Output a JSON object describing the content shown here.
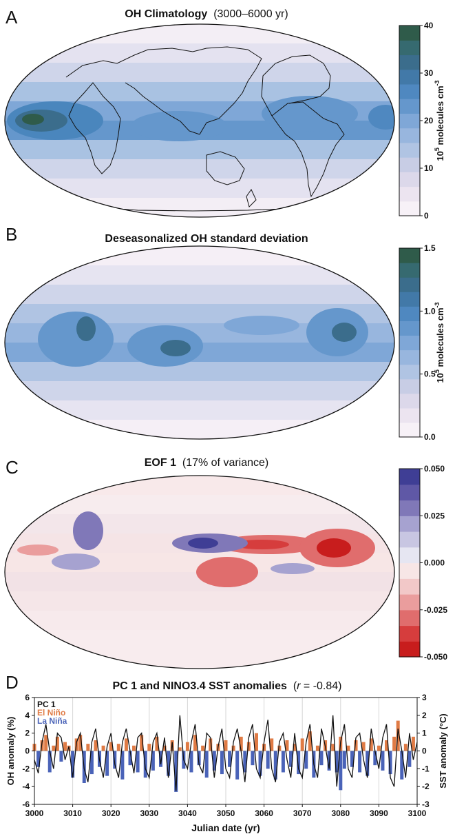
{
  "panels": {
    "a": {
      "letter": "A",
      "title_bold": "OH Climatology",
      "title_rest": "(3000–6000 yr)"
    },
    "b": {
      "letter": "B",
      "title_bold": "Deseasonalized OH standard deviation",
      "title_rest": ""
    },
    "c": {
      "letter": "C",
      "title_bold": "EOF 1",
      "title_rest": "(17% of variance)"
    },
    "d": {
      "letter": "D",
      "title_bold": "PC 1 and NINO3.4 SST anomalies",
      "title_paren_open": "(",
      "title_r": "r",
      "title_rest": " = -0.84)"
    }
  },
  "colorbars": {
    "a": {
      "ticks": [
        "0",
        "10",
        "20",
        "30",
        "40"
      ],
      "unit_base": "10",
      "unit_exp": "5",
      "unit_mid": " molecules cm",
      "unit_exp2": "-3",
      "colors": [
        "#f7f1f7",
        "#ece4f0",
        "#dcd8ea",
        "#c8cde5",
        "#b0c4e3",
        "#98b6de",
        "#7fa7d7",
        "#6597cc",
        "#4f88c0",
        "#4279a8",
        "#3b6d8c",
        "#366a70",
        "#2f5b4a"
      ]
    },
    "b": {
      "ticks": [
        "0.0",
        "0.5",
        "1.0",
        "1.5"
      ],
      "unit_base": "10",
      "unit_exp": "5",
      "unit_mid": " molecules cm",
      "unit_exp2": "-3",
      "colors": [
        "#f7f1f7",
        "#ece4f0",
        "#dcd8ea",
        "#c8cde5",
        "#b0c4e3",
        "#98b6de",
        "#7fa7d7",
        "#6597cc",
        "#4f88c0",
        "#4279a8",
        "#3b6d8c",
        "#366a70",
        "#2f5b4a"
      ]
    },
    "c": {
      "ticks": [
        "0.050",
        "0.025",
        "0.000",
        "-0.025",
        "-0.050"
      ],
      "colors": [
        "#c81d1d",
        "#d63d3d",
        "#e06d6d",
        "#ea9d9d",
        "#f2c8c8",
        "#f7e6e6",
        "#e6e6f2",
        "#c8c6e2",
        "#a6a2d0",
        "#8078b8",
        "#5f58a6",
        "#3f3e95"
      ]
    }
  },
  "maps": {
    "a": {
      "bands": [
        "#f3eef5",
        "#e4e2f0",
        "#cfd5ea",
        "#a9c2e2",
        "#7fa7d7",
        "#6597cc",
        "#a9c2e2",
        "#cfd5ea",
        "#e4e2f0",
        "#f3eef5"
      ]
    },
    "b": {
      "bands": [
        "#f5eff6",
        "#e6e4f1",
        "#cfd5ea",
        "#b0c4e3",
        "#98b6de",
        "#7fa7d7",
        "#b0c4e3",
        "#cfd5ea",
        "#e6e4f1",
        "#f5eff6"
      ]
    },
    "c": {
      "bands": [
        "#f8e9ea",
        "#f7ecee",
        "#f3e6ea",
        "#f5e4e6",
        "#f7e6e6",
        "#f2e2e6",
        "#f5e6e8",
        "#f7eaec",
        "#f8ecee",
        "#f8ecee"
      ]
    }
  },
  "chart_data": {
    "type": "line",
    "title": "PC 1 and NINO3.4 SST anomalies (r = -0.84)",
    "xlabel": "Julian date (yr)",
    "ylabel": "OH anomaly (%)",
    "ylabel_right": "SST anomaly (°C)",
    "xlim": [
      3000,
      3100
    ],
    "ylim": [
      -6,
      6
    ],
    "ylim_right": [
      -3,
      3
    ],
    "xticks": [
      "3000",
      "3010",
      "3020",
      "3030",
      "3040",
      "3050",
      "3060",
      "3070",
      "3080",
      "3090",
      "3100"
    ],
    "yticks": [
      "6",
      "4",
      "2",
      "0",
      "-2",
      "-4",
      "-6"
    ],
    "yticks_right": [
      "3",
      "2",
      "1",
      "0",
      "-1",
      "-2",
      "-3"
    ],
    "legend": [
      {
        "label": "PC 1",
        "color": "#111111"
      },
      {
        "label": "El Niño",
        "color": "#e07b45"
      },
      {
        "label": "La Niña",
        "color": "#4a63b8"
      }
    ],
    "series": [
      {
        "name": "PC 1",
        "axis": "left",
        "x": [
          3000,
          3001,
          3002,
          3003,
          3004,
          3005,
          3006,
          3007,
          3008,
          3009,
          3010,
          3011,
          3012,
          3013,
          3014,
          3015,
          3016,
          3017,
          3018,
          3019,
          3020,
          3021,
          3022,
          3023,
          3024,
          3025,
          3026,
          3027,
          3028,
          3029,
          3030,
          3031,
          3032,
          3033,
          3034,
          3035,
          3036,
          3037,
          3038,
          3039,
          3040,
          3041,
          3042,
          3043,
          3044,
          3045,
          3046,
          3047,
          3048,
          3049,
          3050,
          3051,
          3052,
          3053,
          3054,
          3055,
          3056,
          3057,
          3058,
          3059,
          3060,
          3061,
          3062,
          3063,
          3064,
          3065,
          3066,
          3067,
          3068,
          3069,
          3070,
          3071,
          3072,
          3073,
          3074,
          3075,
          3076,
          3077,
          3078,
          3079,
          3080,
          3081,
          3082,
          3083,
          3084,
          3085,
          3086,
          3087,
          3088,
          3089,
          3090,
          3091,
          3092,
          3093,
          3094,
          3095,
          3096,
          3097,
          3098,
          3099,
          3100
        ],
        "y": [
          -1,
          -2.5,
          1,
          3,
          0,
          -2,
          2,
          1.5,
          -1,
          0.5,
          -3,
          1,
          2,
          -2,
          -3.5,
          1,
          2.5,
          -1,
          -3,
          0.5,
          2,
          -1.5,
          -3,
          1,
          2.5,
          0,
          -2.5,
          1.5,
          2,
          -2,
          -3,
          1,
          2,
          -1.5,
          1.5,
          -3,
          1,
          -4.5,
          4,
          -1,
          -2,
          1,
          3,
          -1.5,
          -2.5,
          2,
          1.5,
          -3,
          0.5,
          2.5,
          -2,
          -3,
          1,
          2.5,
          0,
          -3.5,
          1.5,
          3,
          -2,
          -3,
          1,
          3.5,
          -2,
          -3.5,
          1,
          2,
          -1,
          -3,
          2,
          -2,
          -3,
          1,
          3,
          -1.5,
          -3,
          2.5,
          0.5,
          -2,
          4,
          -4,
          1,
          3,
          -2,
          -3,
          1.5,
          2,
          -1,
          -3,
          2.5,
          0,
          -2,
          1.5,
          3,
          -3,
          -4,
          2.5,
          0,
          -3,
          2,
          -1,
          1
        ]
      },
      {
        "name": "El Niño",
        "axis": "right",
        "x": [
          3000,
          3002,
          3003,
          3005,
          3006,
          3008,
          3009,
          3011,
          3012,
          3014,
          3016,
          3018,
          3020,
          3022,
          3024,
          3026,
          3028,
          3030,
          3032,
          3034,
          3036,
          3038,
          3040,
          3042,
          3044,
          3046,
          3048,
          3050,
          3052,
          3054,
          3056,
          3058,
          3060,
          3062,
          3064,
          3066,
          3068,
          3070,
          3072,
          3074,
          3076,
          3078,
          3080,
          3082,
          3084,
          3086,
          3088,
          3090,
          3092,
          3094,
          3095,
          3097,
          3099
        ],
        "y": [
          0.4,
          0.6,
          0.9,
          0.3,
          0.8,
          0.5,
          0.3,
          0.7,
          0.9,
          0.4,
          0.6,
          0.3,
          0.5,
          0.4,
          0.7,
          0.3,
          0.9,
          0.4,
          0.8,
          0.3,
          0.6,
          0.2,
          0.5,
          0.9,
          0.3,
          0.7,
          0.4,
          0.6,
          0.3,
          0.8,
          0.5,
          1.0,
          0.4,
          0.7,
          0.3,
          0.6,
          0.4,
          0.7,
          1.1,
          0.3,
          0.6,
          0.4,
          0.8,
          0.3,
          0.6,
          0.5,
          0.7,
          0.3,
          0.6,
          0.8,
          1.7,
          0.4,
          0.8
        ]
      },
      {
        "name": "La Niña",
        "axis": "right",
        "x": [
          3001,
          3004,
          3007,
          3010,
          3013,
          3015,
          3017,
          3019,
          3021,
          3023,
          3025,
          3027,
          3029,
          3031,
          3033,
          3035,
          3037,
          3039,
          3041,
          3043,
          3045,
          3047,
          3049,
          3051,
          3053,
          3055,
          3057,
          3059,
          3061,
          3063,
          3065,
          3067,
          3069,
          3071,
          3073,
          3075,
          3077,
          3079,
          3080,
          3081,
          3083,
          3085,
          3087,
          3089,
          3091,
          3093,
          3096,
          3098
        ],
        "y": [
          -0.9,
          -1.2,
          -0.6,
          -1.5,
          -1.8,
          -1.3,
          -0.9,
          -1.4,
          -1.0,
          -1.6,
          -0.8,
          -1.2,
          -1.5,
          -1.1,
          -0.9,
          -1.4,
          -2.3,
          -1.0,
          -1.2,
          -0.8,
          -1.5,
          -1.1,
          -1.3,
          -0.9,
          -1.6,
          -1.2,
          -0.8,
          -1.4,
          -1.0,
          -1.6,
          -1.2,
          -0.9,
          -1.3,
          -1.0,
          -1.5,
          -0.8,
          -1.1,
          -1.2,
          -2.2,
          -1.0,
          -0.9,
          -1.2,
          -1.4,
          -0.8,
          -1.1,
          -1.3,
          -1.6,
          -0.9
        ]
      }
    ]
  }
}
